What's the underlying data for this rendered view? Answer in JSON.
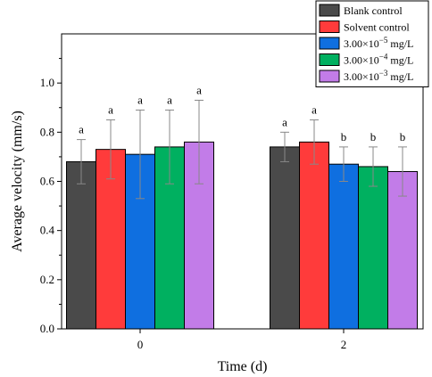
{
  "chart_data": {
    "type": "bar",
    "xlabel": "Time (d)",
    "ylabel": "Average velocity (mm/s)",
    "categories": [
      "0",
      "2"
    ],
    "ylim": [
      0,
      1.2
    ],
    "yticks": [
      "0.0",
      "0.2",
      "0.4",
      "0.6",
      "0.8",
      "1.0"
    ],
    "error_bars": true,
    "legend_position": "top-right",
    "series": [
      {
        "name": "Blank control",
        "color": "#4a4a4a",
        "values": [
          0.68,
          0.74
        ],
        "errors": [
          0.09,
          0.06
        ],
        "labels": [
          "a",
          "a"
        ]
      },
      {
        "name": "Solvent control",
        "color": "#ff3b3b",
        "values": [
          0.73,
          0.76
        ],
        "errors": [
          0.12,
          0.09
        ],
        "labels": [
          "a",
          "a"
        ]
      },
      {
        "name": "3.00×10<sup>−5</sup> mg/L",
        "legend_base": "3.00×10",
        "legend_exp": "−5",
        "legend_unit": " mg/L",
        "color": "#0f6fe0",
        "values": [
          0.71,
          0.67
        ],
        "errors": [
          0.18,
          0.07
        ],
        "labels": [
          "a",
          "b"
        ]
      },
      {
        "name": "3.00×10−4 mg/L",
        "legend_base": "3.00×10",
        "legend_exp": "−4",
        "legend_unit": " mg/L",
        "color": "#00b060",
        "values": [
          0.74,
          0.66
        ],
        "errors": [
          0.15,
          0.08
        ],
        "labels": [
          "a",
          "b"
        ]
      },
      {
        "name": "3.00×10−3 mg/L",
        "legend_base": "3.00×10",
        "legend_exp": "−3",
        "legend_unit": " mg/L",
        "color": "#c27ce8",
        "values": [
          0.76,
          0.64
        ],
        "errors": [
          0.17,
          0.1
        ],
        "labels": [
          "a",
          "b"
        ]
      }
    ]
  }
}
